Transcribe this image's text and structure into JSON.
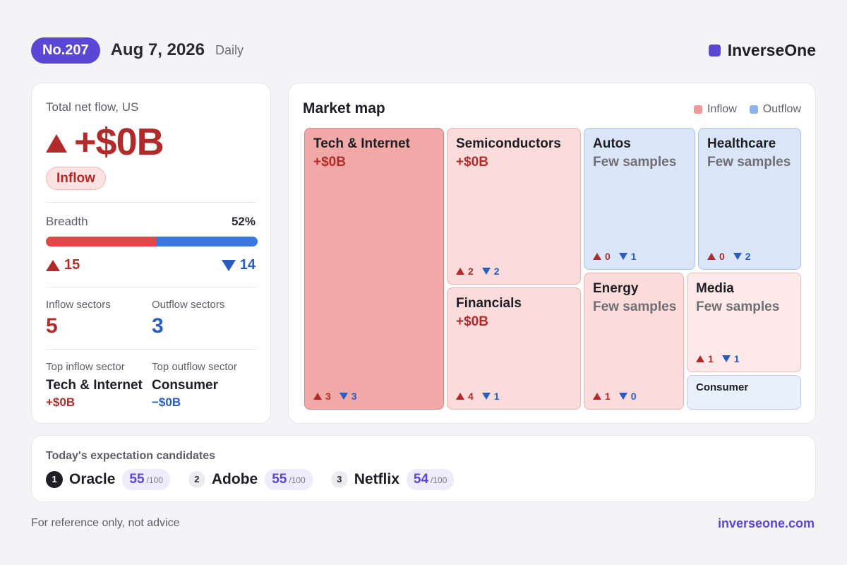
{
  "header": {
    "issue": "No.207",
    "date": "Aug 7, 2026",
    "frequency": "Daily",
    "brand": "InverseOne"
  },
  "summary": {
    "label": "Total net flow, US",
    "value": "+$0B",
    "status": "Inflow",
    "breadth_label": "Breadth",
    "breadth_pct": "52%",
    "breadth_fraction": 0.52,
    "up_count": "15",
    "down_count": "14",
    "inflow_sectors_label": "Inflow sectors",
    "inflow_sectors": "5",
    "outflow_sectors_label": "Outflow sectors",
    "outflow_sectors": "3",
    "top_inflow_label": "Top inflow sector",
    "top_inflow_name": "Tech & Internet",
    "top_inflow_value": "+$0B",
    "top_outflow_label": "Top outflow sector",
    "top_outflow_name": "Consumer",
    "top_outflow_value": "−$0B"
  },
  "market_map": {
    "title": "Market map",
    "legend_inflow": "Inflow",
    "legend_outflow": "Outflow",
    "colors": {
      "inflow": "#f0a0a0",
      "outflow": "#8fb2ec"
    },
    "tiles": [
      {
        "name": "Tech & Internet",
        "value": "+$0B",
        "up": "3",
        "down": "3"
      },
      {
        "name": "Semiconductors",
        "value": "+$0B",
        "up": "2",
        "down": "2"
      },
      {
        "name": "Financials",
        "value": "+$0B",
        "up": "4",
        "down": "1"
      },
      {
        "name": "Autos",
        "value": "Few samples",
        "up": "0",
        "down": "1"
      },
      {
        "name": "Healthcare",
        "value": "Few samples",
        "up": "0",
        "down": "2"
      },
      {
        "name": "Energy",
        "value": "Few samples",
        "up": "1",
        "down": "0"
      },
      {
        "name": "Media",
        "value": "Few samples",
        "up": "1",
        "down": "1"
      },
      {
        "name": "Consumer"
      }
    ]
  },
  "candidates": {
    "title": "Today's expectation candidates",
    "max": "/100",
    "items": [
      {
        "rank": "1",
        "name": "Oracle",
        "score": "55"
      },
      {
        "rank": "2",
        "name": "Adobe",
        "score": "55"
      },
      {
        "rank": "3",
        "name": "Netflix",
        "score": "54"
      }
    ]
  },
  "footer": {
    "disclaimer": "For reference only, not advice",
    "site": "inverseone.com"
  }
}
